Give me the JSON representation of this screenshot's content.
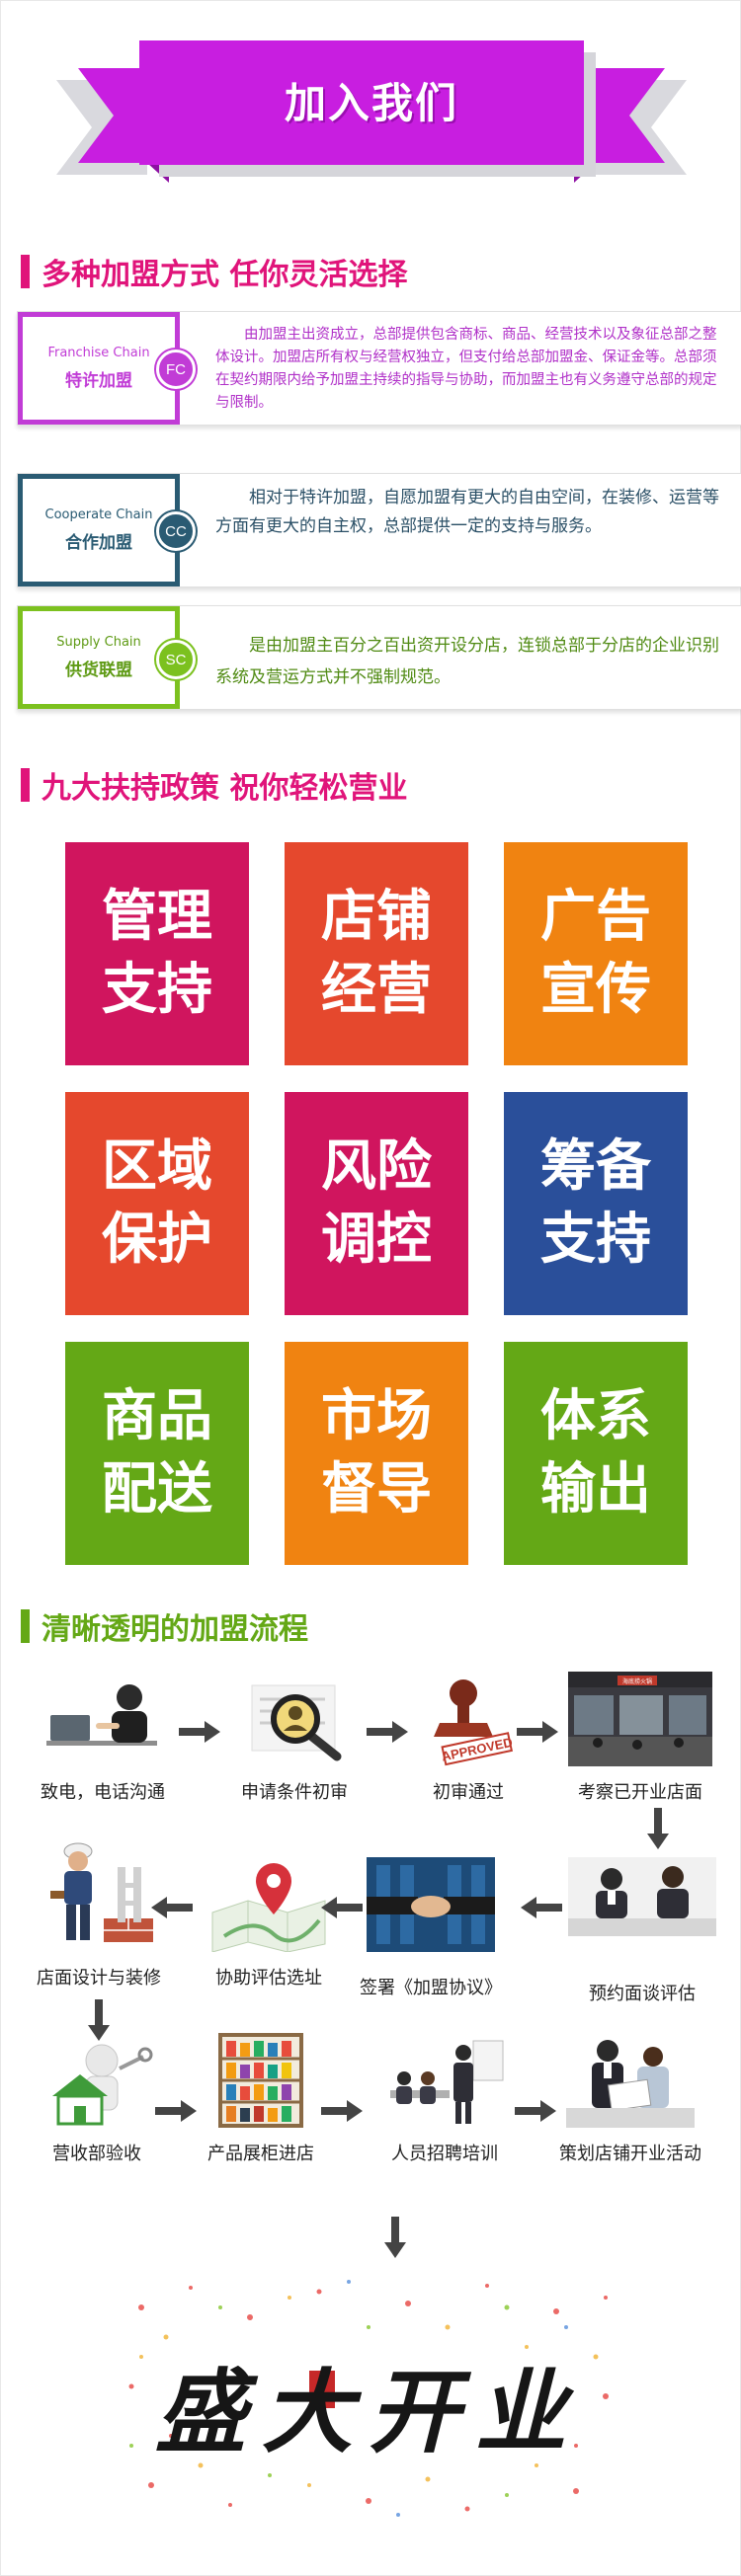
{
  "banner": {
    "title": "加入我们"
  },
  "section1": {
    "title": "多种加盟方式  任你灵活选择",
    "chains": [
      {
        "en": "Franchise Chain",
        "cn": "特许加盟",
        "badge": "FC",
        "color": "#c13cd6",
        "desc": "由加盟主出资成立，总部提供包含商标、商品、经营技术以及象征总部之整体设计。加盟店所有权与经营权独立，但支付给总部加盟金、保证金等。总部须在契约期限内给予加盟主持续的指导与协助，而加盟主也有义务遵守总部的规定与限制。"
      },
      {
        "en": "Cooperate Chain",
        "cn": "合作加盟",
        "badge": "CC",
        "color": "#2a5b73",
        "desc": "相对于特许加盟，自愿加盟有更大的自由空间，在装修、运营等方面有更大的自主权，总部提供一定的支持与服务。"
      },
      {
        "en": "Supply Chain",
        "cn": "供货联盟",
        "badge": "SC",
        "color": "#7cc11f",
        "desc": "是由加盟主百分之百出资开设分店，连锁总部于分店的企业识别系统及营运方式并不强制规范。"
      }
    ]
  },
  "section2": {
    "title": "九大扶持政策  祝你轻松营业",
    "tiles": [
      {
        "line1": "管理",
        "line2": "支持",
        "color": "#d0155e"
      },
      {
        "line1": "店铺",
        "line2": "经营",
        "color": "#e5482d"
      },
      {
        "line1": "广告",
        "line2": "宣传",
        "color": "#f08311"
      },
      {
        "line1": "区域",
        "line2": "保护",
        "color": "#e5482d"
      },
      {
        "line1": "风险",
        "line2": "调控",
        "color": "#d0155e"
      },
      {
        "line1": "筹备",
        "line2": "支持",
        "color": "#2a4f9a"
      },
      {
        "line1": "商品",
        "line2": "配送",
        "color": "#64a816"
      },
      {
        "line1": "市场",
        "line2": "督导",
        "color": "#f08311"
      },
      {
        "line1": "体系",
        "line2": "输出",
        "color": "#64a816"
      }
    ]
  },
  "section3": {
    "title": "清晰透明的加盟流程",
    "steps": [
      {
        "label": "致电，电话沟通",
        "icon": "phone-call-icon"
      },
      {
        "label": "申请条件初审",
        "icon": "magnifier-icon"
      },
      {
        "label": "初审通过",
        "icon": "approved-stamp-icon"
      },
      {
        "label": "考察已开业店面",
        "icon": "store-icon"
      },
      {
        "label": "预约面谈评估",
        "icon": "interview-icon"
      },
      {
        "label": "签署《加盟协议》",
        "icon": "handshake-icon"
      },
      {
        "label": "协助评估选址",
        "icon": "map-pin-icon"
      },
      {
        "label": "店面设计与装修",
        "icon": "worker-icon"
      },
      {
        "label": "营收部验收",
        "icon": "house-inspection-icon"
      },
      {
        "label": "产品展柜进店",
        "icon": "display-shelf-icon"
      },
      {
        "label": "人员招聘培训",
        "icon": "training-icon"
      },
      {
        "label": "策划店铺开业活动",
        "icon": "planning-icon"
      }
    ],
    "stamp": "APPROVED",
    "store_sign": "海底捞火锅"
  },
  "finale": {
    "text": "盛大开业"
  },
  "colors": {
    "banner_purple": "#c81ee0",
    "banner_dark": "#8e10a3",
    "heading_pink": "#e0147a",
    "heading_green": "#64a816",
    "arrow": "#444444"
  }
}
